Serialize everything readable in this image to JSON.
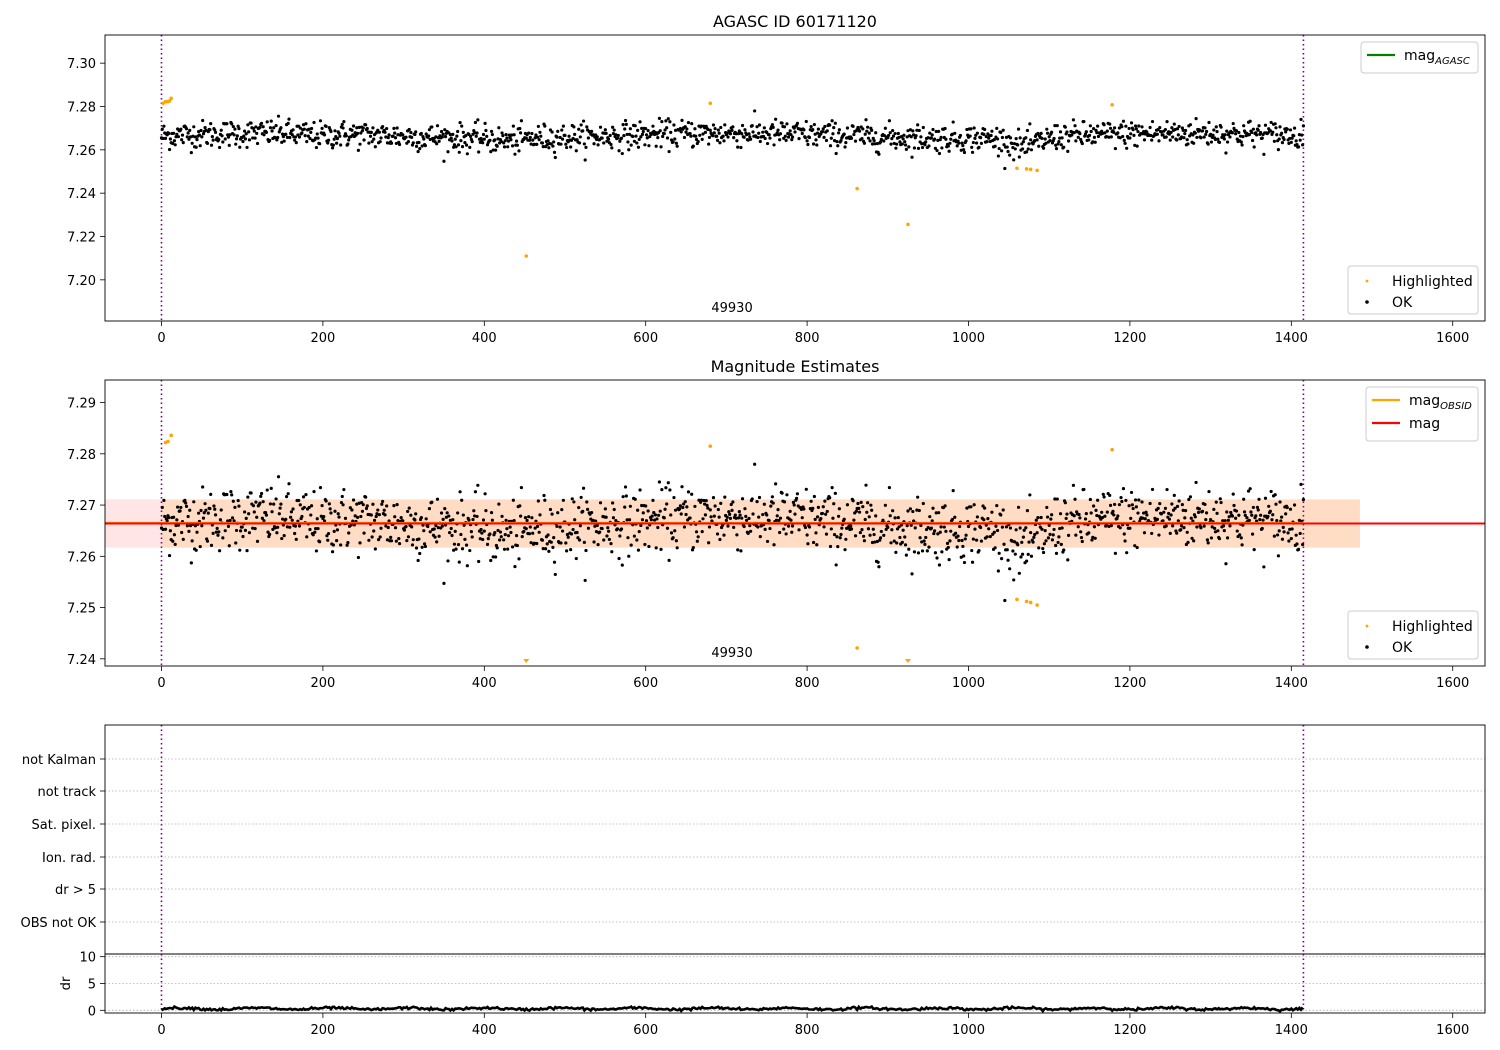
{
  "chart_data": [
    {
      "type": "scatter",
      "title": "AGASC ID 60171120",
      "xlim": [
        -70,
        1640
      ],
      "ylim": [
        7.181,
        7.313
      ],
      "xticks": [
        0,
        200,
        400,
        600,
        800,
        1000,
        1200,
        1400,
        1600
      ],
      "yticks": [
        7.2,
        7.22,
        7.24,
        7.26,
        7.28,
        7.3
      ],
      "grid": false,
      "vlines": [
        0,
        1415
      ],
      "obsid_label": {
        "text": "49930",
        "x": 707
      },
      "legend_lines": {
        "placement": "upper right",
        "entries": [
          {
            "label": "mag",
            "sub": "AGASC",
            "color": "#008000"
          }
        ]
      },
      "legend_points": {
        "placement": "lower right",
        "entries": [
          {
            "label": "Highlighted",
            "color": "#ffa500"
          },
          {
            "label": "OK",
            "color": "#000000"
          }
        ]
      },
      "series": [
        {
          "name": "OK",
          "color": "#000000",
          "n": 1416,
          "x_range": [
            0,
            1415
          ],
          "baseline": 7.2665,
          "band": 0.0035,
          "dips": [
            {
              "x": 1070,
              "depth": 0.004
            },
            {
              "x": 190,
              "depth": 0.001
            },
            {
              "x": 430,
              "depth": 0.001
            }
          ]
        },
        {
          "name": "Highlighted",
          "color": "#ffa500",
          "points": [
            [
              2,
              7.2815
            ],
            [
              5,
              7.2822
            ],
            [
              8,
              7.2823
            ],
            [
              10,
              7.2826
            ],
            [
              12,
              7.2838
            ],
            [
              680,
              7.2815
            ],
            [
              1178,
              7.2808
            ],
            [
              1060,
              7.2515
            ],
            [
              1072,
              7.2512
            ],
            [
              1077,
              7.251
            ],
            [
              1085,
              7.2505
            ],
            [
              862,
              7.2421
            ],
            [
              925,
              7.2256
            ],
            [
              452,
              7.211
            ]
          ]
        }
      ]
    },
    {
      "type": "scatter",
      "title": "Magnitude Estimates",
      "xlim": [
        -70,
        1640
      ],
      "ylim": [
        7.2386,
        7.2944
      ],
      "xticks": [
        0,
        200,
        400,
        600,
        800,
        1000,
        1200,
        1400,
        1600
      ],
      "yticks": [
        7.24,
        7.25,
        7.26,
        7.27,
        7.28,
        7.29
      ],
      "grid": false,
      "vlines": [
        0,
        1415
      ],
      "obsid_label": {
        "text": "49930",
        "x": 707
      },
      "mean_mag": 7.2664,
      "mean_mag_x_range": [
        -70,
        1640
      ],
      "band_mag": [
        7.2617,
        7.2711
      ],
      "band_mag_x_range": [
        -70,
        1485
      ],
      "band_obsid": [
        7.2617,
        7.2711
      ],
      "band_obsid_x_range": [
        0,
        1485
      ],
      "legend_lines": {
        "placement": "upper right",
        "entries": [
          {
            "label": "mag",
            "sub": "OBSID",
            "color": "#ffa500"
          },
          {
            "label": "mag",
            "sub": "",
            "color": "#ff0000"
          }
        ]
      },
      "legend_points": {
        "placement": "lower right",
        "entries": [
          {
            "label": "Highlighted",
            "color": "#ffa500"
          },
          {
            "label": "OK",
            "color": "#000000"
          }
        ]
      },
      "series": [
        {
          "name": "OK",
          "color": "#000000",
          "shared_with_panel_1": true
        },
        {
          "name": "Highlighted",
          "color": "#ffa500",
          "points": [
            [
              5,
              7.2822
            ],
            [
              8,
              7.2824
            ],
            [
              12,
              7.2836
            ],
            [
              680,
              7.2815
            ],
            [
              1178,
              7.2808
            ],
            [
              1060,
              7.2516
            ],
            [
              1072,
              7.2512
            ],
            [
              1077,
              7.251
            ],
            [
              1085,
              7.2505
            ],
            [
              862,
              7.2421
            ]
          ],
          "offscale_markers": [
            452,
            925
          ]
        }
      ]
    },
    {
      "type": "scatter",
      "title": "",
      "xlim": [
        -70,
        1640
      ],
      "categories": [
        "not Kalman",
        "not track",
        "Sat. pixel.",
        "Ion. rad.",
        "dr > 5",
        "OBS not OK"
      ],
      "flagged_points": [],
      "vlines": [
        0,
        1415
      ],
      "grid": "horizontal dotted"
    },
    {
      "type": "line",
      "ylabel": "dr",
      "xlim": [
        -70,
        1640
      ],
      "ylim": [
        -0.5,
        10.5
      ],
      "xticks": [
        0,
        200,
        400,
        600,
        800,
        1000,
        1200,
        1400,
        1600
      ],
      "yticks": [
        0,
        5,
        10
      ],
      "grid": "horizontal dotted",
      "vlines": [
        0,
        1415
      ],
      "series": [
        {
          "name": "dr",
          "color": "#000000",
          "n": 1416,
          "x_range": [
            0,
            1415
          ],
          "mean": 0.3,
          "amplitude": 0.25
        }
      ]
    }
  ]
}
